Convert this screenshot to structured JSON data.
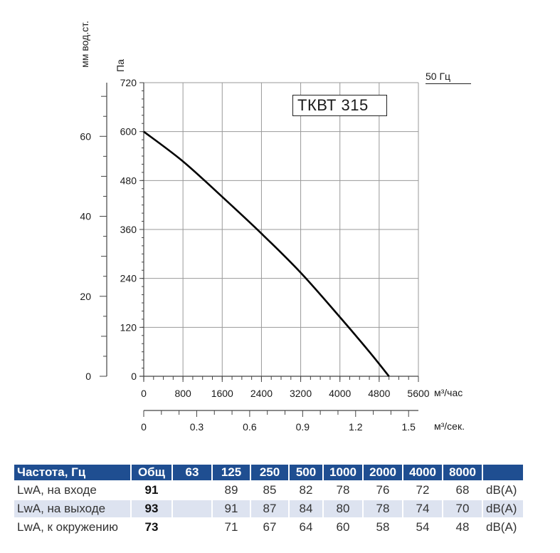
{
  "chart_data": {
    "type": "line",
    "title": "ТКВТ 315",
    "frequency_label": "50 Гц",
    "ylabel_primary": "Па",
    "ylabel_secondary": "мм вод.ст.",
    "xlabel_primary": "м³/час",
    "xlabel_secondary": "м³/сек.",
    "x_ticks": [
      0,
      800,
      1600,
      2400,
      3200,
      4000,
      4800,
      5600
    ],
    "x_ticks_secondary": [
      0,
      0.3,
      0.6,
      0.9,
      1.2,
      1.5
    ],
    "y_ticks": [
      0,
      120,
      240,
      360,
      480,
      600,
      720
    ],
    "y_ticks_secondary": [
      0,
      20,
      40,
      60
    ],
    "xlim": [
      0,
      5600
    ],
    "ylim": [
      0,
      720
    ],
    "grid": true,
    "series": [
      {
        "x": [
          0,
          800,
          1600,
          2400,
          3200,
          4000,
          4600,
          5000
        ],
        "y": [
          600,
          527,
          440,
          350,
          254,
          145,
          60,
          0
        ]
      }
    ]
  },
  "noise_table": {
    "headers": [
      "Частота, Гц",
      "Общ",
      "63",
      "125",
      "250",
      "500",
      "1000",
      "2000",
      "4000",
      "8000"
    ],
    "rows": [
      {
        "label": "LwA, на входе",
        "total": "91",
        "values": [
          "",
          "89",
          "85",
          "82",
          "78",
          "76",
          "72",
          "68"
        ],
        "unit": "dB(A)"
      },
      {
        "label": "LwA, на выходе",
        "total": "93",
        "values": [
          "",
          "91",
          "87",
          "84",
          "80",
          "78",
          "74",
          "70"
        ],
        "unit": "dB(A)"
      },
      {
        "label": "LwA, к окружению",
        "total": "73",
        "values": [
          "",
          "71",
          "67",
          "64",
          "60",
          "58",
          "54",
          "48"
        ],
        "unit": "dB(A)"
      }
    ]
  }
}
